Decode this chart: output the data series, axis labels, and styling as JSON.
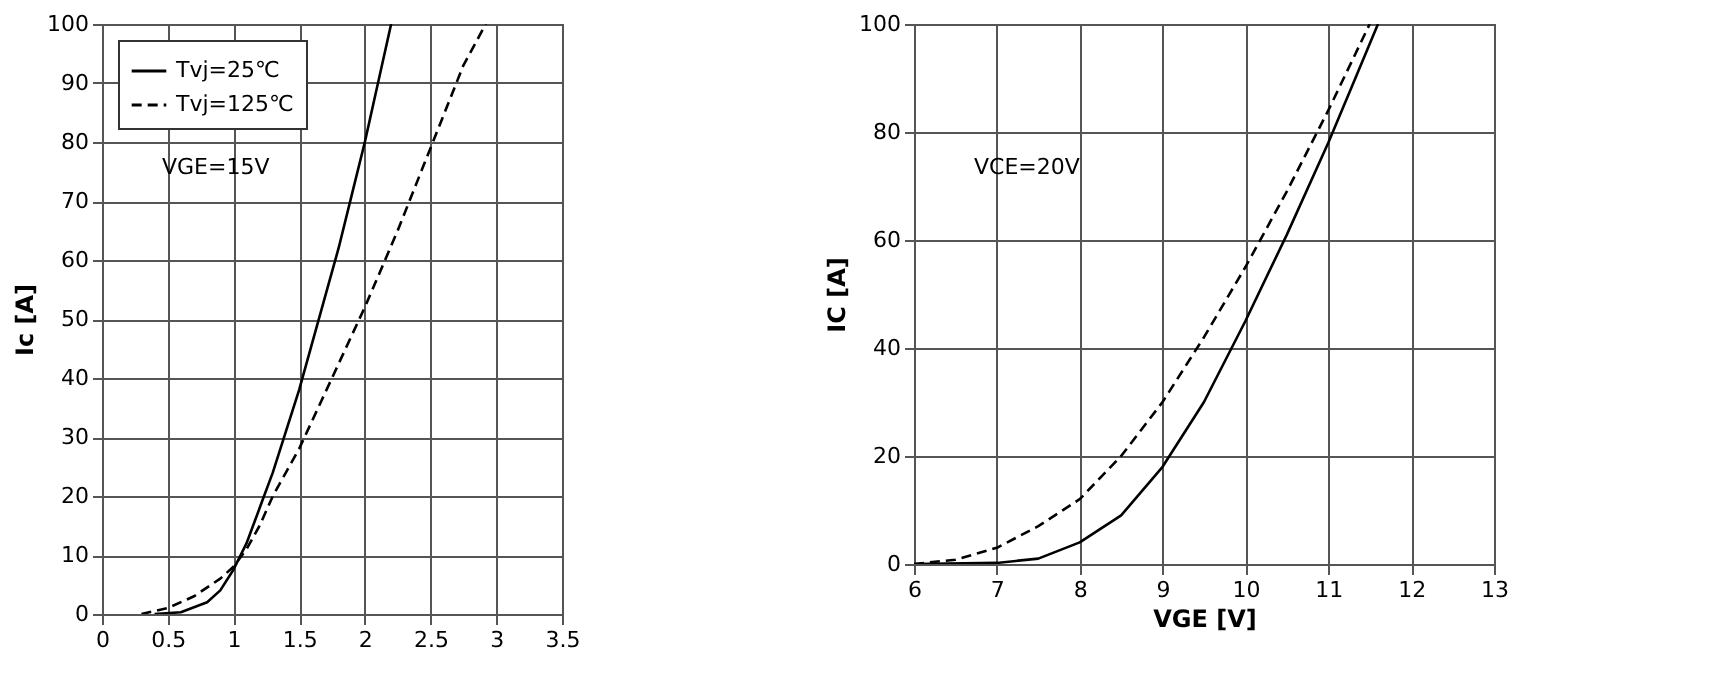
{
  "chart_data": [
    {
      "type": "line",
      "ylabel": "Ic [A]",
      "annotations": [
        "VGE=15V"
      ],
      "legend": "top left",
      "grid": true,
      "xlim": [
        0,
        3.5
      ],
      "xticks": [
        0,
        0.5,
        1,
        1.5,
        2,
        2.5,
        3,
        3.5
      ],
      "ylim": [
        0,
        100
      ],
      "yticks": [
        0,
        10,
        20,
        30,
        40,
        50,
        60,
        70,
        80,
        90,
        100
      ],
      "series": [
        {
          "name": "Tvj=25℃",
          "color": "#000000",
          "line_style": "solid",
          "x": [
            0.4,
            0.6,
            0.8,
            0.9,
            1.0,
            1.1,
            1.2,
            1.3,
            1.4,
            1.5,
            1.6,
            1.7,
            1.8,
            1.9,
            2.0,
            2.1,
            2.2
          ],
          "values": [
            0,
            0.3,
            2,
            4,
            7.5,
            12,
            18,
            24,
            31,
            38,
            46,
            54,
            62,
            71,
            80,
            90,
            100
          ]
        },
        {
          "name": "Tvj=125℃",
          "color": "#000000",
          "line_style": "dashed",
          "x": [
            0.3,
            0.5,
            0.7,
            0.9,
            1.0,
            1.1,
            1.2,
            1.3,
            1.5,
            1.75,
            2.0,
            2.25,
            2.5,
            2.75,
            2.92
          ],
          "values": [
            0,
            1,
            3,
            6,
            8,
            11,
            15,
            20,
            28,
            40,
            52,
            65,
            79,
            93,
            100
          ]
        }
      ]
    },
    {
      "type": "line",
      "xlabel": "VGE [V]",
      "ylabel": "IC [A]",
      "annotations": [
        "VCE=20V"
      ],
      "legend": "top left",
      "grid": true,
      "xlim": [
        6,
        13
      ],
      "xticks": [
        6,
        7,
        8,
        9,
        10,
        11,
        12,
        13
      ],
      "ylim": [
        0,
        100
      ],
      "yticks": [
        0,
        20,
        40,
        60,
        80,
        100
      ],
      "series": [
        {
          "name": "Tvj=25℃",
          "color": "#000000",
          "line_style": "solid",
          "x": [
            6,
            7,
            7.5,
            8,
            8.5,
            9,
            9.5,
            10,
            10.5,
            11,
            11.3,
            11.6
          ],
          "values": [
            0,
            0.2,
            1,
            4,
            9,
            18,
            30,
            45,
            61,
            78,
            89,
            100
          ]
        },
        {
          "name": "Tvj=125℃",
          "color": "#000000",
          "line_style": "dashed",
          "x": [
            6,
            6.5,
            7,
            7.5,
            8,
            8.5,
            9,
            9.5,
            10,
            10.5,
            11,
            11.5
          ],
          "values": [
            0,
            0.8,
            3,
            7,
            12,
            20,
            30,
            42,
            55,
            69,
            84,
            100
          ]
        }
      ]
    }
  ]
}
